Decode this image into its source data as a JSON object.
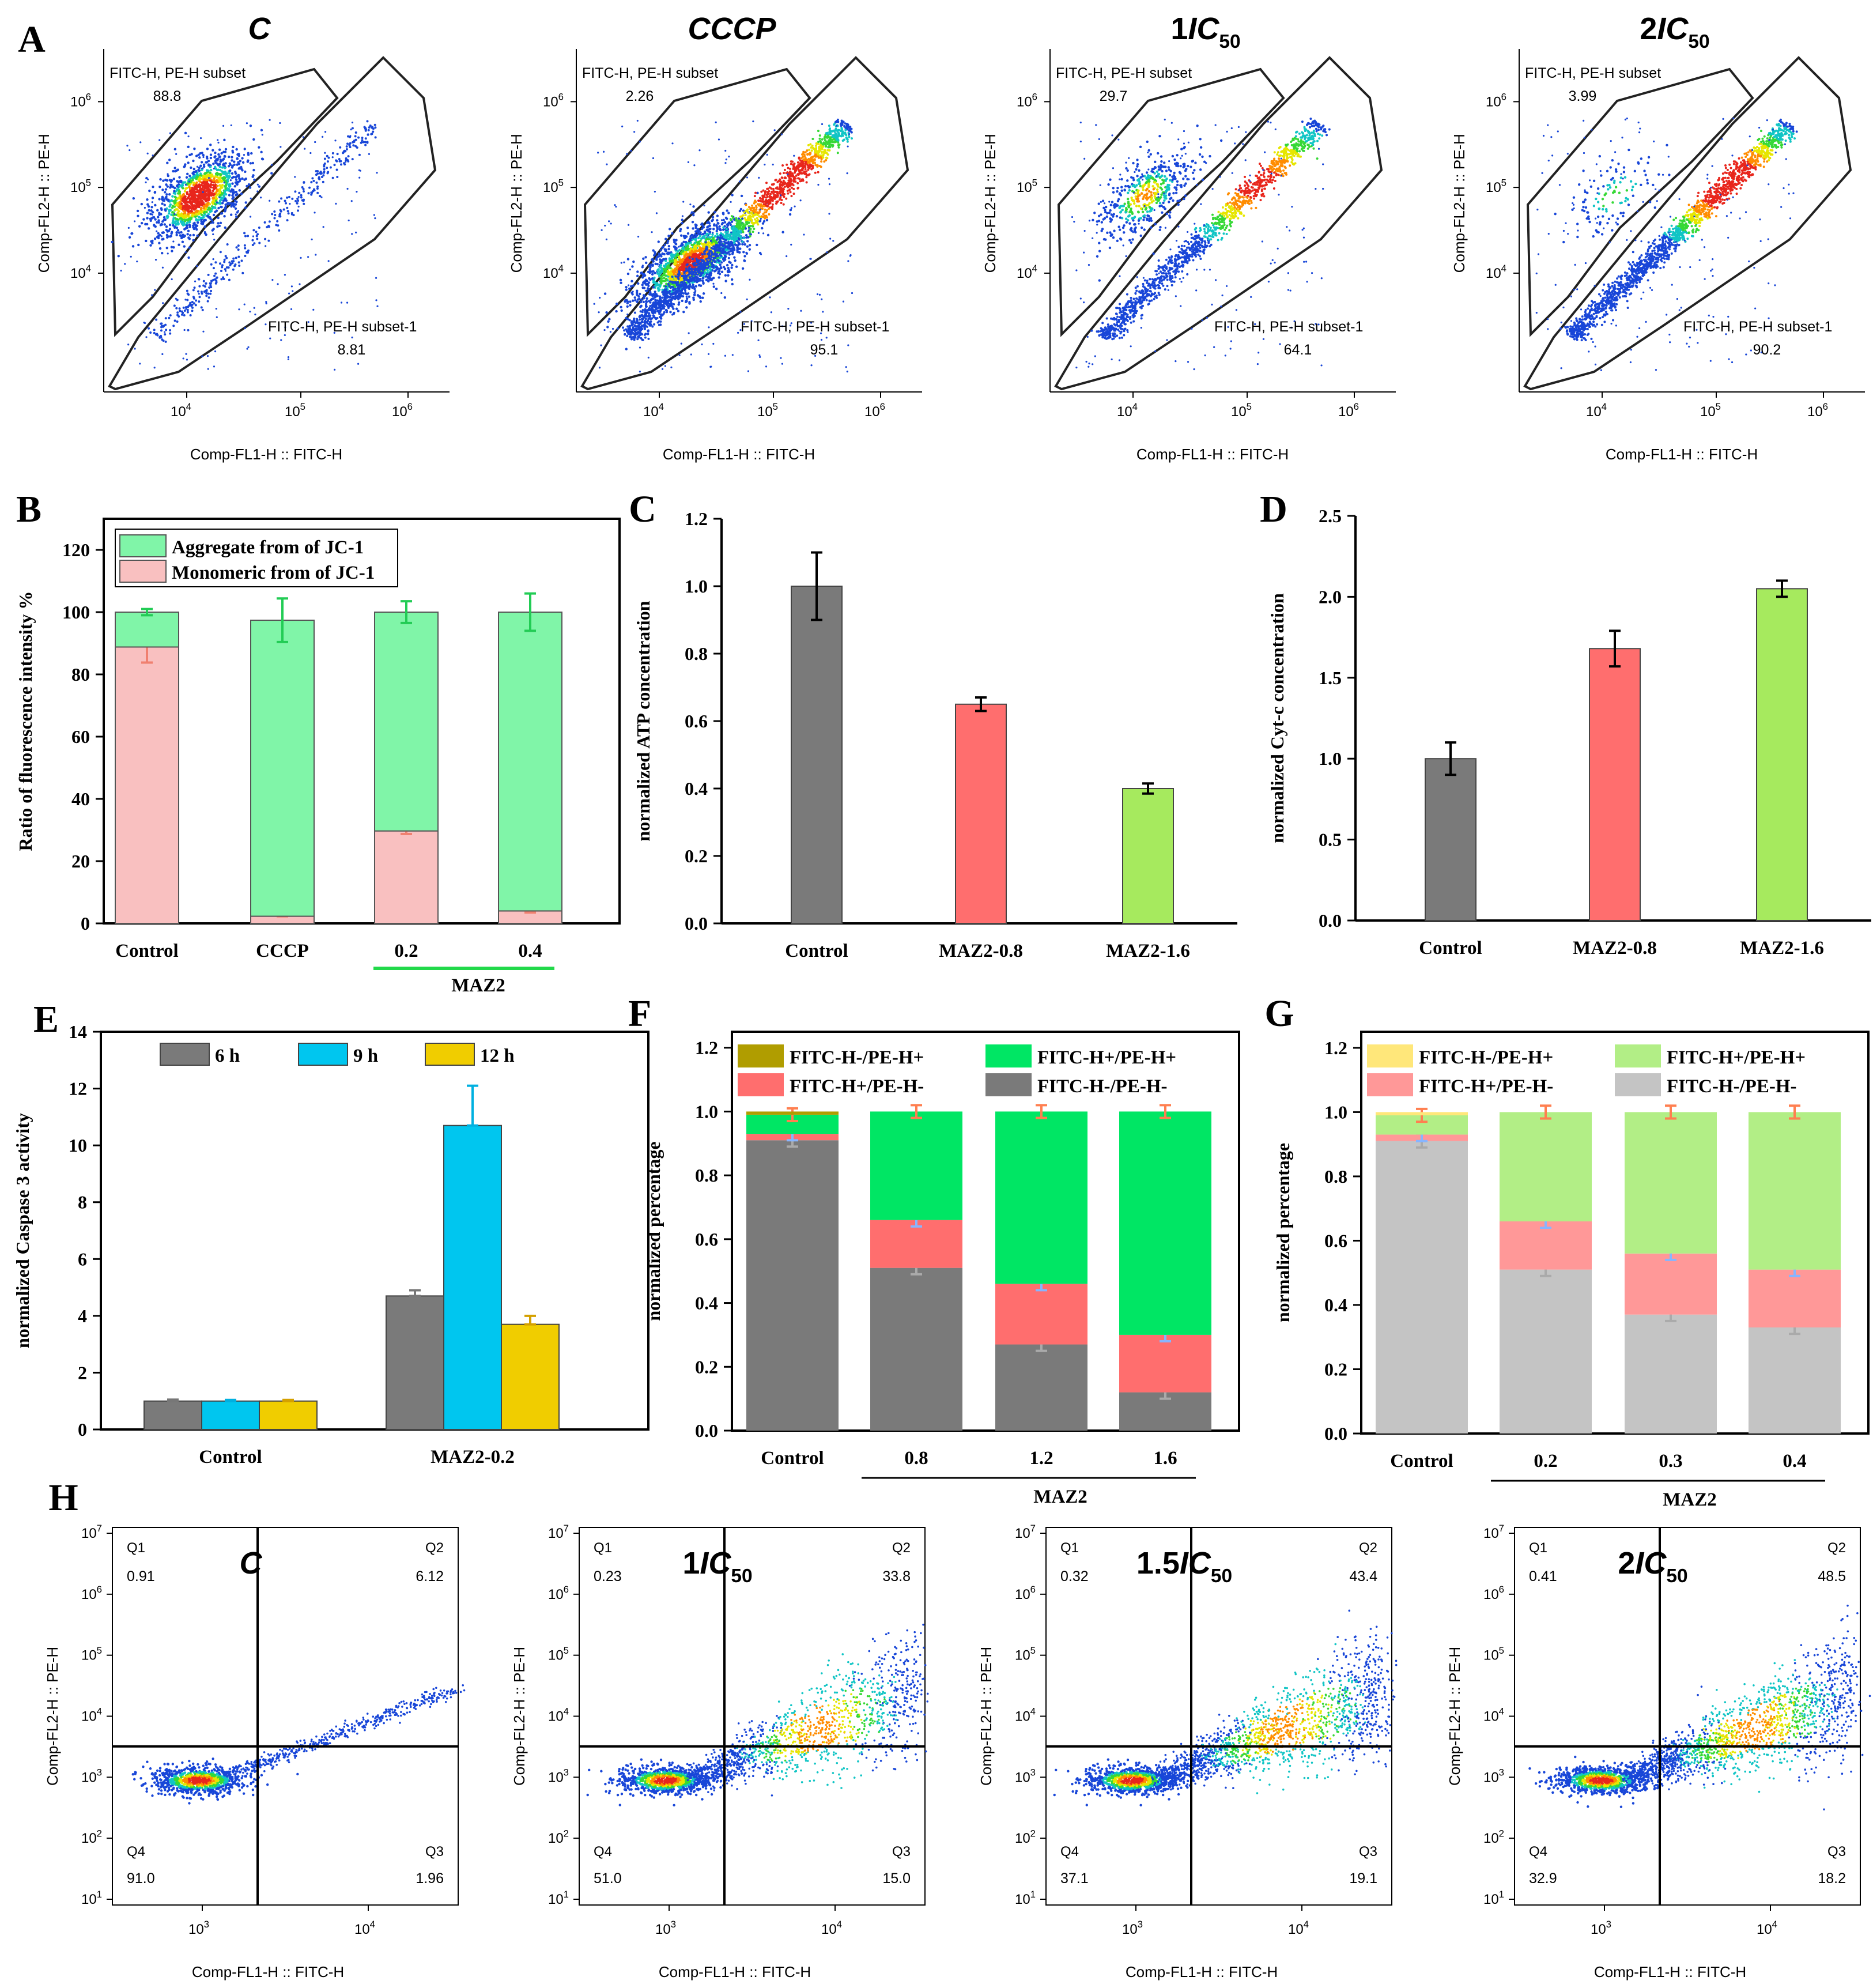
{
  "panel_letters": [
    "A",
    "B",
    "C",
    "D",
    "E",
    "F",
    "G",
    "H"
  ],
  "flow_A": {
    "xlabel": "Comp-FL1-H :: FITC-H",
    "ylabel": "Comp-FL2-H :: PE-H",
    "x_ticks": [
      "10",
      "10",
      "10"
    ],
    "x_ticks_exp": [
      "4",
      "5",
      "6"
    ],
    "y_ticks": [
      "10",
      "10",
      "10"
    ],
    "y_ticks_exp": [
      "6",
      "5",
      "4"
    ],
    "gate_upper_label": "FITC-H, PE-H subset",
    "gate_lower_label": "FITC-H, PE-H subset-1",
    "plots": [
      {
        "title": "C",
        "title_sub": "",
        "upper": "88.8",
        "lower": "8.81",
        "red_cluster": 0.88
      },
      {
        "title": "CCCP",
        "title_sub": "",
        "upper": "2.26",
        "lower": "95.1",
        "red_cluster": 0.02
      },
      {
        "title": "1IC",
        "title_sub": "50",
        "upper": "29.7",
        "lower": "64.1",
        "red_cluster": 0.3
      },
      {
        "title": "2IC",
        "title_sub": "50",
        "upper": "3.99",
        "lower": "90.2",
        "red_cluster": 0.04
      }
    ]
  },
  "flow_H": {
    "xlabel": "Comp-FL1-H :: FITC-H",
    "ylabel": "Comp-FL2-H :: PE-H",
    "x_ticks": [
      "10",
      "10"
    ],
    "x_ticks_exp": [
      "3",
      "4"
    ],
    "y_ticks": [
      "10",
      "10",
      "10",
      "10",
      "10",
      "10",
      "10"
    ],
    "y_ticks_exp": [
      "7",
      "6",
      "5",
      "4",
      "3",
      "2",
      "1"
    ],
    "quadrant_names": [
      "Q1",
      "Q2",
      "Q3",
      "Q4"
    ],
    "plots": [
      {
        "title": "C",
        "title_sub": "",
        "q1": "0.91",
        "q2": "6.12",
        "q3": "1.96",
        "q4": "91.0"
      },
      {
        "title": "1IC",
        "title_sub": "50",
        "q1": "0.23",
        "q2": "33.8",
        "q3": "15.0",
        "q4": "51.0"
      },
      {
        "title": "1.5IC",
        "title_sub": "50",
        "q1": "0.32",
        "q2": "43.4",
        "q3": "19.1",
        "q4": "37.1"
      },
      {
        "title": "2IC",
        "title_sub": "50",
        "q1": "0.41",
        "q2": "48.5",
        "q3": "18.2",
        "q4": "32.9"
      }
    ]
  },
  "chart_data": [
    {
      "id": "B",
      "type": "bar",
      "ylabel": "Ratio of fluorescence intensity %",
      "categories": [
        "Control",
        "CCCP",
        "0.2",
        "0.4"
      ],
      "group_label": "MAZ2",
      "ylim": [
        0,
        130
      ],
      "yticks": [
        0,
        20,
        40,
        60,
        80,
        100,
        120
      ],
      "series": [
        {
          "name": "Monomeric from of JC-1",
          "color": "#f9c0c0",
          "values": [
            88.8,
            2.3,
            29.7,
            4.0
          ],
          "errors": [
            5,
            0,
            1,
            0.5
          ]
        },
        {
          "name": "Aggregate from of JC-1",
          "color": "#80f5a8",
          "values": [
            11.2,
            95.1,
            70.3,
            96.0
          ],
          "errors": [
            1,
            7,
            3.5,
            6
          ]
        }
      ]
    },
    {
      "id": "C",
      "type": "bar",
      "ylabel": "normalized ATP concentration",
      "categories": [
        "Control",
        "MAZ2-0.8",
        "MAZ2-1.6"
      ],
      "ylim": [
        0,
        1.2
      ],
      "yticks": [
        "0.0",
        "0.2",
        "0.4",
        "0.6",
        "0.8",
        "1.0",
        "1.2"
      ],
      "values": [
        1.0,
        0.65,
        0.4
      ],
      "errors": [
        0.1,
        0.02,
        0.015
      ],
      "colors": [
        "#7a7a7a",
        "#ff6e6e",
        "#a6ea5e"
      ]
    },
    {
      "id": "D",
      "type": "bar",
      "ylabel": "normalized Cyt-c concentration",
      "categories": [
        "Control",
        "MAZ2-0.8",
        "MAZ2-1.6"
      ],
      "ylim": [
        0,
        2.5
      ],
      "yticks": [
        "0.0",
        "0.5",
        "1.0",
        "1.5",
        "2.0",
        "2.5"
      ],
      "values": [
        1.0,
        1.68,
        2.05
      ],
      "errors": [
        0.1,
        0.11,
        0.05
      ],
      "colors": [
        "#7a7a7a",
        "#ff6e6e",
        "#a6ea5e"
      ]
    },
    {
      "id": "E",
      "type": "bar",
      "ylabel": "normalized Caspase 3 activity",
      "categories": [
        "Control",
        "MAZ2-0.2"
      ],
      "ylim": [
        0,
        14
      ],
      "yticks": [
        0,
        2,
        4,
        6,
        8,
        10,
        12,
        14
      ],
      "series": [
        {
          "name": "6 h",
          "color": "#7a7a7a",
          "values": [
            1.0,
            4.7
          ],
          "errors": [
            0.05,
            0.2
          ]
        },
        {
          "name": "9 h",
          "color": "#00c6ef",
          "values": [
            1.0,
            10.7
          ],
          "errors": [
            0.04,
            1.4
          ]
        },
        {
          "name": "12 h",
          "color": "#f0cd00",
          "values": [
            1.0,
            3.7
          ],
          "errors": [
            0.04,
            0.3
          ]
        }
      ]
    },
    {
      "id": "F",
      "type": "bar",
      "ylabel": "normalized percentage",
      "categories": [
        "Control",
        "0.8",
        "1.2",
        "1.6"
      ],
      "group_label": "MAZ2",
      "ylim": [
        0,
        1.25
      ],
      "yticks": [
        "0.0",
        "0.2",
        "0.4",
        "0.6",
        "0.8",
        "1.0",
        "1.2"
      ],
      "series": [
        {
          "name": "FITC-H-/PE-H-",
          "color": "#7a7a7a",
          "values": [
            0.91,
            0.51,
            0.27,
            0.12
          ]
        },
        {
          "name": "FITC-H+/PE-H-",
          "color": "#ff6e6e",
          "values": [
            0.02,
            0.15,
            0.19,
            0.18
          ]
        },
        {
          "name": "FITC-H+/PE-H+",
          "color": "#00e664",
          "values": [
            0.06,
            0.34,
            0.54,
            0.7
          ]
        },
        {
          "name": "FITC-H-/PE-H+",
          "color": "#b09d00",
          "values": [
            0.01,
            0.0,
            0.0,
            0.0
          ]
        }
      ],
      "legend_order": [
        "FITC-H-/PE-H+",
        "FITC-H+/PE-H+",
        "FITC-H+/PE-H-",
        "FITC-H-/PE-H-"
      ]
    },
    {
      "id": "G",
      "type": "bar",
      "ylabel": "normalized percentage",
      "categories": [
        "Control",
        "0.2",
        "0.3",
        "0.4"
      ],
      "group_label": "MAZ2",
      "ylim": [
        0,
        1.25
      ],
      "yticks": [
        "0.0",
        "0.2",
        "0.4",
        "0.6",
        "0.8",
        "1.0",
        "1.2"
      ],
      "series": [
        {
          "name": "FITC-H-/PE-H-",
          "color": "#c4c4c4",
          "values": [
            0.91,
            0.51,
            0.37,
            0.33
          ]
        },
        {
          "name": "FITC-H+/PE-H-",
          "color": "#ff9898",
          "values": [
            0.02,
            0.15,
            0.19,
            0.18
          ]
        },
        {
          "name": "FITC-H+/PE-H+",
          "color": "#b2ee86",
          "values": [
            0.06,
            0.34,
            0.44,
            0.49
          ]
        },
        {
          "name": "FITC-H-/PE-H+",
          "color": "#ffe77a",
          "values": [
            0.01,
            0.0,
            0.0,
            0.0
          ]
        }
      ],
      "legend_order": [
        "FITC-H-/PE-H+",
        "FITC-H+/PE-H+",
        "FITC-H+/PE-H-",
        "FITC-H-/PE-H-"
      ]
    }
  ]
}
